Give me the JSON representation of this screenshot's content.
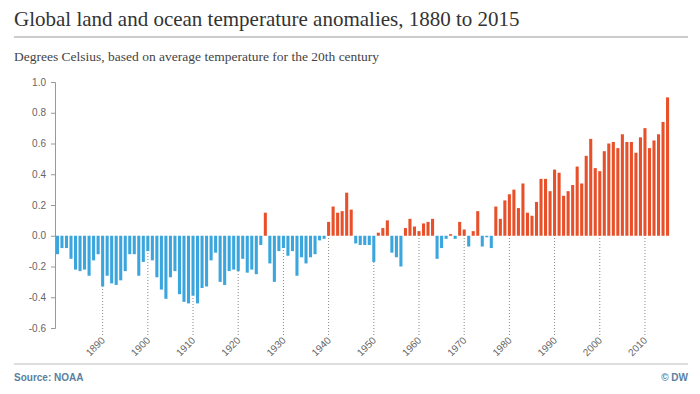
{
  "chart_data": {
    "type": "bar",
    "title": "Global land and ocean temperature anomalies, 1880 to 2015",
    "subtitle": "Degrees Celsius, based on average temperature for the 20th century",
    "source": "Source: NOAA",
    "credit": "© DW",
    "categories": [
      null,
      null,
      null,
      null,
      null,
      null,
      null,
      null,
      null,
      null,
      "1890",
      null,
      null,
      null,
      null,
      null,
      null,
      null,
      null,
      null,
      "1900",
      null,
      null,
      null,
      null,
      null,
      null,
      null,
      null,
      null,
      "1910",
      null,
      null,
      null,
      null,
      null,
      null,
      null,
      null,
      null,
      "1920",
      null,
      null,
      null,
      null,
      null,
      null,
      null,
      null,
      null,
      "1930",
      null,
      null,
      null,
      null,
      null,
      null,
      null,
      null,
      null,
      "1940",
      null,
      null,
      null,
      null,
      null,
      null,
      null,
      null,
      null,
      "1950",
      null,
      null,
      null,
      null,
      null,
      null,
      null,
      null,
      null,
      "1960",
      null,
      null,
      null,
      null,
      null,
      null,
      null,
      null,
      null,
      "1970",
      null,
      null,
      null,
      null,
      null,
      null,
      null,
      null,
      null,
      "1980",
      null,
      null,
      null,
      null,
      null,
      null,
      null,
      null,
      null,
      "1990",
      null,
      null,
      null,
      null,
      null,
      null,
      null,
      null,
      null,
      "2000",
      null,
      null,
      null,
      null,
      null,
      null,
      null,
      null,
      null,
      "2010",
      null,
      null,
      null,
      null,
      null
    ],
    "values": [
      -0.12,
      -0.08,
      -0.08,
      -0.15,
      -0.22,
      -0.23,
      -0.22,
      -0.26,
      -0.16,
      -0.12,
      -0.33,
      -0.26,
      -0.31,
      -0.32,
      -0.29,
      -0.23,
      -0.12,
      -0.12,
      -0.26,
      -0.17,
      -0.1,
      -0.16,
      -0.27,
      -0.35,
      -0.41,
      -0.27,
      -0.23,
      -0.38,
      -0.43,
      -0.44,
      -0.39,
      -0.44,
      -0.34,
      -0.33,
      -0.16,
      -0.11,
      -0.3,
      -0.32,
      -0.23,
      -0.22,
      -0.23,
      -0.15,
      -0.24,
      -0.22,
      -0.25,
      -0.06,
      0.15,
      -0.18,
      -0.3,
      -0.1,
      -0.08,
      -0.13,
      -0.1,
      -0.26,
      -0.14,
      -0.18,
      -0.14,
      -0.12,
      -0.03,
      -0.02,
      0.09,
      0.19,
      0.15,
      0.16,
      0.28,
      0.17,
      -0.05,
      -0.06,
      -0.06,
      -0.06,
      -0.17,
      0.02,
      0.05,
      0.1,
      -0.11,
      -0.14,
      -0.2,
      0.05,
      0.11,
      0.06,
      0.03,
      0.08,
      0.09,
      0.11,
      -0.15,
      -0.08,
      -0.02,
      0.01,
      -0.02,
      0.09,
      0.04,
      -0.07,
      0.03,
      0.16,
      -0.07,
      -0.01,
      -0.08,
      0.19,
      0.11,
      0.23,
      0.27,
      0.3,
      0.18,
      0.34,
      0.15,
      0.13,
      0.22,
      0.37,
      0.37,
      0.29,
      0.43,
      0.41,
      0.26,
      0.29,
      0.33,
      0.45,
      0.34,
      0.52,
      0.63,
      0.44,
      0.42,
      0.55,
      0.6,
      0.61,
      0.57,
      0.66,
      0.61,
      0.61,
      0.54,
      0.64,
      0.7,
      0.57,
      0.62,
      0.66,
      0.74,
      0.9
    ],
    "colors": [
      "#3aa6dd",
      "#3aa6dd",
      "#3aa6dd",
      "#3aa6dd",
      "#3aa6dd",
      "#3aa6dd",
      "#3aa6dd",
      "#3aa6dd",
      "#3aa6dd",
      "#3aa6dd",
      "#3aa6dd",
      "#3aa6dd",
      "#3aa6dd",
      "#3aa6dd",
      "#3aa6dd",
      "#3aa6dd",
      "#3aa6dd",
      "#3aa6dd",
      "#3aa6dd",
      "#3aa6dd",
      "#3aa6dd",
      "#3aa6dd",
      "#3aa6dd",
      "#3aa6dd",
      "#3aa6dd",
      "#3aa6dd",
      "#3aa6dd",
      "#3aa6dd",
      "#3aa6dd",
      "#3aa6dd",
      "#3aa6dd",
      "#3aa6dd",
      "#3aa6dd",
      "#3aa6dd",
      "#3aa6dd",
      "#3aa6dd",
      "#3aa6dd",
      "#3aa6dd",
      "#3aa6dd",
      "#3aa6dd",
      "#3aa6dd",
      "#3aa6dd",
      "#3aa6dd",
      "#3aa6dd",
      "#3aa6dd",
      "#3aa6dd",
      "#e8502a",
      "#3aa6dd",
      "#3aa6dd",
      "#3aa6dd",
      "#3aa6dd",
      "#3aa6dd",
      "#3aa6dd",
      "#3aa6dd",
      "#3aa6dd",
      "#3aa6dd",
      "#3aa6dd",
      "#3aa6dd",
      "#3aa6dd",
      "#3aa6dd",
      "#e8502a",
      "#e8502a",
      "#e8502a",
      "#e8502a",
      "#e8502a",
      "#e8502a",
      "#3aa6dd",
      "#3aa6dd",
      "#3aa6dd",
      "#3aa6dd",
      "#3aa6dd",
      "#e8502a",
      "#e8502a",
      "#e8502a",
      "#3aa6dd",
      "#3aa6dd",
      "#3aa6dd",
      "#e8502a",
      "#e8502a",
      "#e8502a",
      "#e8502a",
      "#e8502a",
      "#e8502a",
      "#e8502a",
      "#3aa6dd",
      "#3aa6dd",
      "#3aa6dd",
      "#e8502a",
      "#3aa6dd",
      "#e8502a",
      "#e8502a",
      "#3aa6dd",
      "#e8502a",
      "#e8502a",
      "#3aa6dd",
      "#3aa6dd",
      "#3aa6dd",
      "#e8502a",
      "#e8502a",
      "#e8502a",
      "#e8502a",
      "#e8502a",
      "#e8502a",
      "#e8502a",
      "#e8502a",
      "#e8502a",
      "#e8502a",
      "#e8502a",
      "#e8502a",
      "#e8502a",
      "#e8502a",
      "#e8502a",
      "#e8502a",
      "#e8502a",
      "#e8502a",
      "#e8502a",
      "#e8502a",
      "#e8502a",
      "#e8502a",
      "#e8502a",
      "#e8502a",
      "#e8502a",
      "#e8502a",
      "#e8502a",
      "#e8502a",
      "#e8502a",
      "#e8502a",
      "#e8502a",
      "#e8502a",
      "#e8502a",
      "#e8502a",
      "#e8502a",
      "#e8502a",
      "#e8502a",
      "#e8502a",
      "#e8502a"
    ],
    "ylim": [
      -0.6,
      1.0
    ],
    "yticks": [
      -0.6,
      -0.4,
      -0.2,
      {
        "value": 0,
        "label": "0.0"
      },
      0.2,
      0.4,
      0.6,
      0.8,
      {
        "value": 1,
        "label": "1.0"
      }
    ],
    "grid": false
  }
}
